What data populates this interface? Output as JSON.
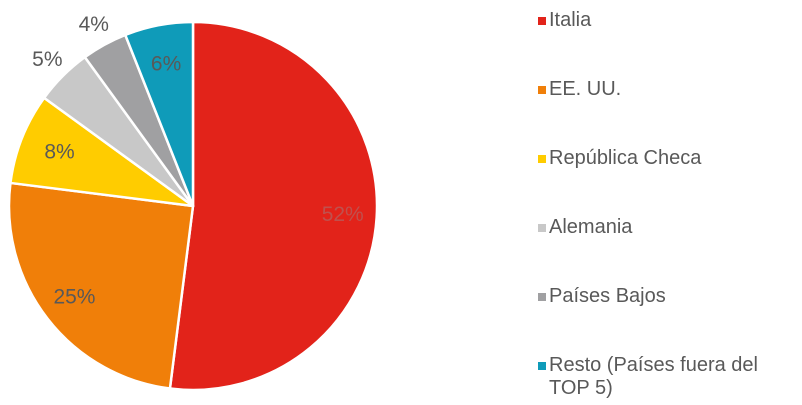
{
  "chart_data": {
    "type": "pie",
    "slices": [
      {
        "label": "Italia",
        "value": 52,
        "display": "52%",
        "color": "#E2231A",
        "label_color": "#C0504D"
      },
      {
        "label": "EE. UU.",
        "value": 25,
        "display": "25%",
        "color": "#F07F09",
        "label_color": "#595959"
      },
      {
        "label": "República Checa",
        "value": 8,
        "display": "8%",
        "color": "#FFCC00",
        "label_color": "#595959"
      },
      {
        "label": "Alemania",
        "value": 5,
        "display": "5%",
        "color": "#C8C8C8",
        "label_color": "#595959"
      },
      {
        "label": "Países Bajos",
        "value": 4,
        "display": "4%",
        "color": "#A0A0A2",
        "label_color": "#595959"
      },
      {
        "label": "Resto (Países fuera del TOP 5)",
        "value": 6,
        "display": "6%",
        "color": "#0F9BB9",
        "label_color": "#595959"
      }
    ],
    "legend_position": "right"
  }
}
